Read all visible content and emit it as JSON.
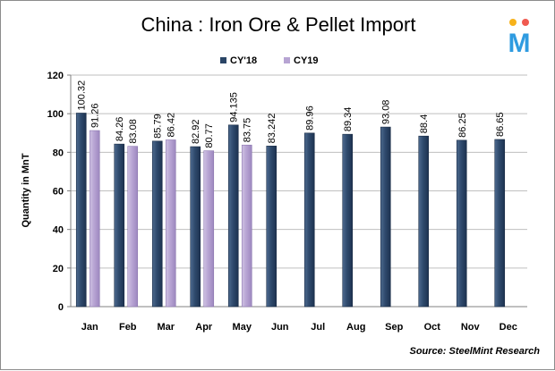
{
  "chart_data": {
    "type": "bar",
    "title": "China : Iron Ore & Pellet Import",
    "ylabel": "Quantity in MnT",
    "xlabel": "",
    "ylim": [
      0,
      120
    ],
    "ytick_step": 20,
    "grid": true,
    "legend_position": "top-center",
    "categories": [
      "Jan",
      "Feb",
      "Mar",
      "Apr",
      "May",
      "Jun",
      "Jul",
      "Aug",
      "Sep",
      "Oct",
      "Nov",
      "Dec"
    ],
    "series": [
      {
        "name": "CY'18",
        "color": "#2a4566",
        "values": [
          100.32,
          84.26,
          85.79,
          82.92,
          94.135,
          83.242,
          89.96,
          89.34,
          93.08,
          88.4,
          86.25,
          86.65
        ],
        "labels": [
          "100.32",
          "84.26",
          "85.79",
          "82.92",
          "94.135",
          "83.242",
          "89.96",
          "89.34",
          "93.08",
          "88.4",
          "86.25",
          "86.65"
        ]
      },
      {
        "name": "CY19",
        "color": "#b7a4d3",
        "values": [
          91.26,
          83.08,
          86.42,
          80.77,
          83.75,
          null,
          null,
          null,
          null,
          null,
          null,
          null
        ],
        "labels": [
          "91.26",
          "83.08",
          "86.42",
          "80.77",
          "83.75",
          null,
          null,
          null,
          null,
          null,
          null,
          null
        ]
      }
    ],
    "source": "Source: SteelMint Research"
  },
  "logo": {
    "letter": "M",
    "dot_colors": [
      "#f7b21b",
      "#f05a50"
    ],
    "color": "#2f9be0"
  }
}
